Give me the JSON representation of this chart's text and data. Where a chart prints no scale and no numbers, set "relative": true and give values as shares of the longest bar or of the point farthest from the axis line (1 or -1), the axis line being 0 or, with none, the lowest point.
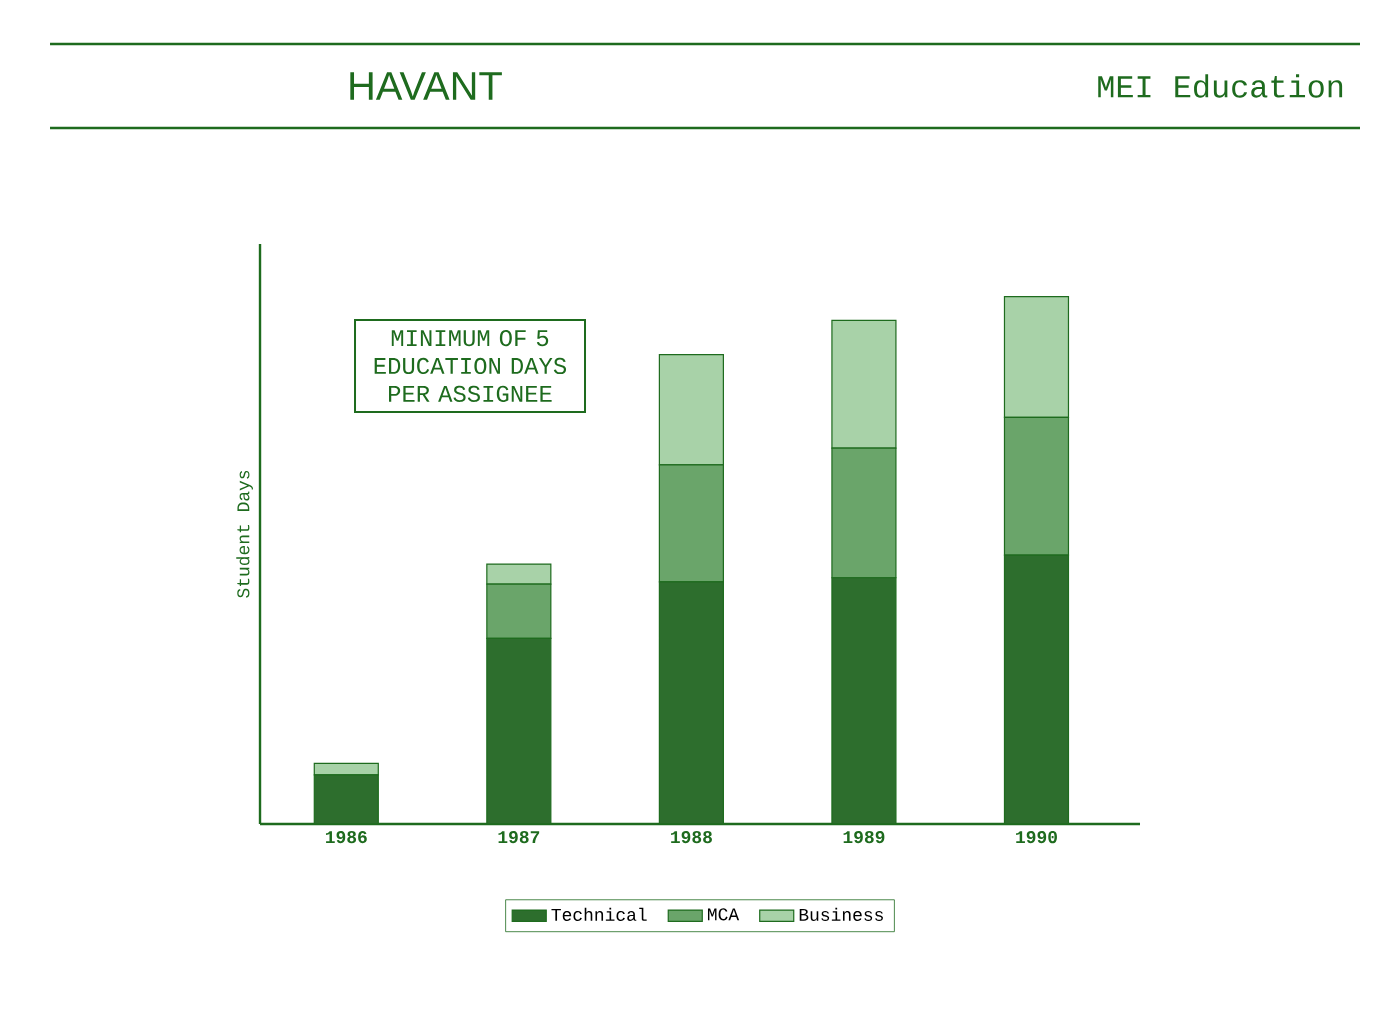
{
  "chart_data": {
    "type": "bar",
    "title": "MEI Education",
    "subtitle": "HAVANT",
    "ylabel": "Student Days",
    "relative": true,
    "stacked": true,
    "legend": "bottom",
    "categories": [
      "1986",
      "1987",
      "1988",
      "1989",
      "1990"
    ],
    "series": [
      {
        "name": "Technical",
        "color": "#2d6e2d",
        "values": [
          0.093,
          0.352,
          0.459,
          0.467,
          0.51
        ]
      },
      {
        "name": "MCA",
        "color": "#6aa56a",
        "values": [
          0,
          0.103,
          0.222,
          0.246,
          0.261
        ]
      },
      {
        "name": "Business",
        "color": "#a8d2a8",
        "values": [
          0.022,
          0.038,
          0.209,
          0.242,
          0.229
        ]
      }
    ],
    "annotations": [
      "MINIMUM OF 5 EDUCATION DAYS PER ASSIGNEE"
    ]
  }
}
